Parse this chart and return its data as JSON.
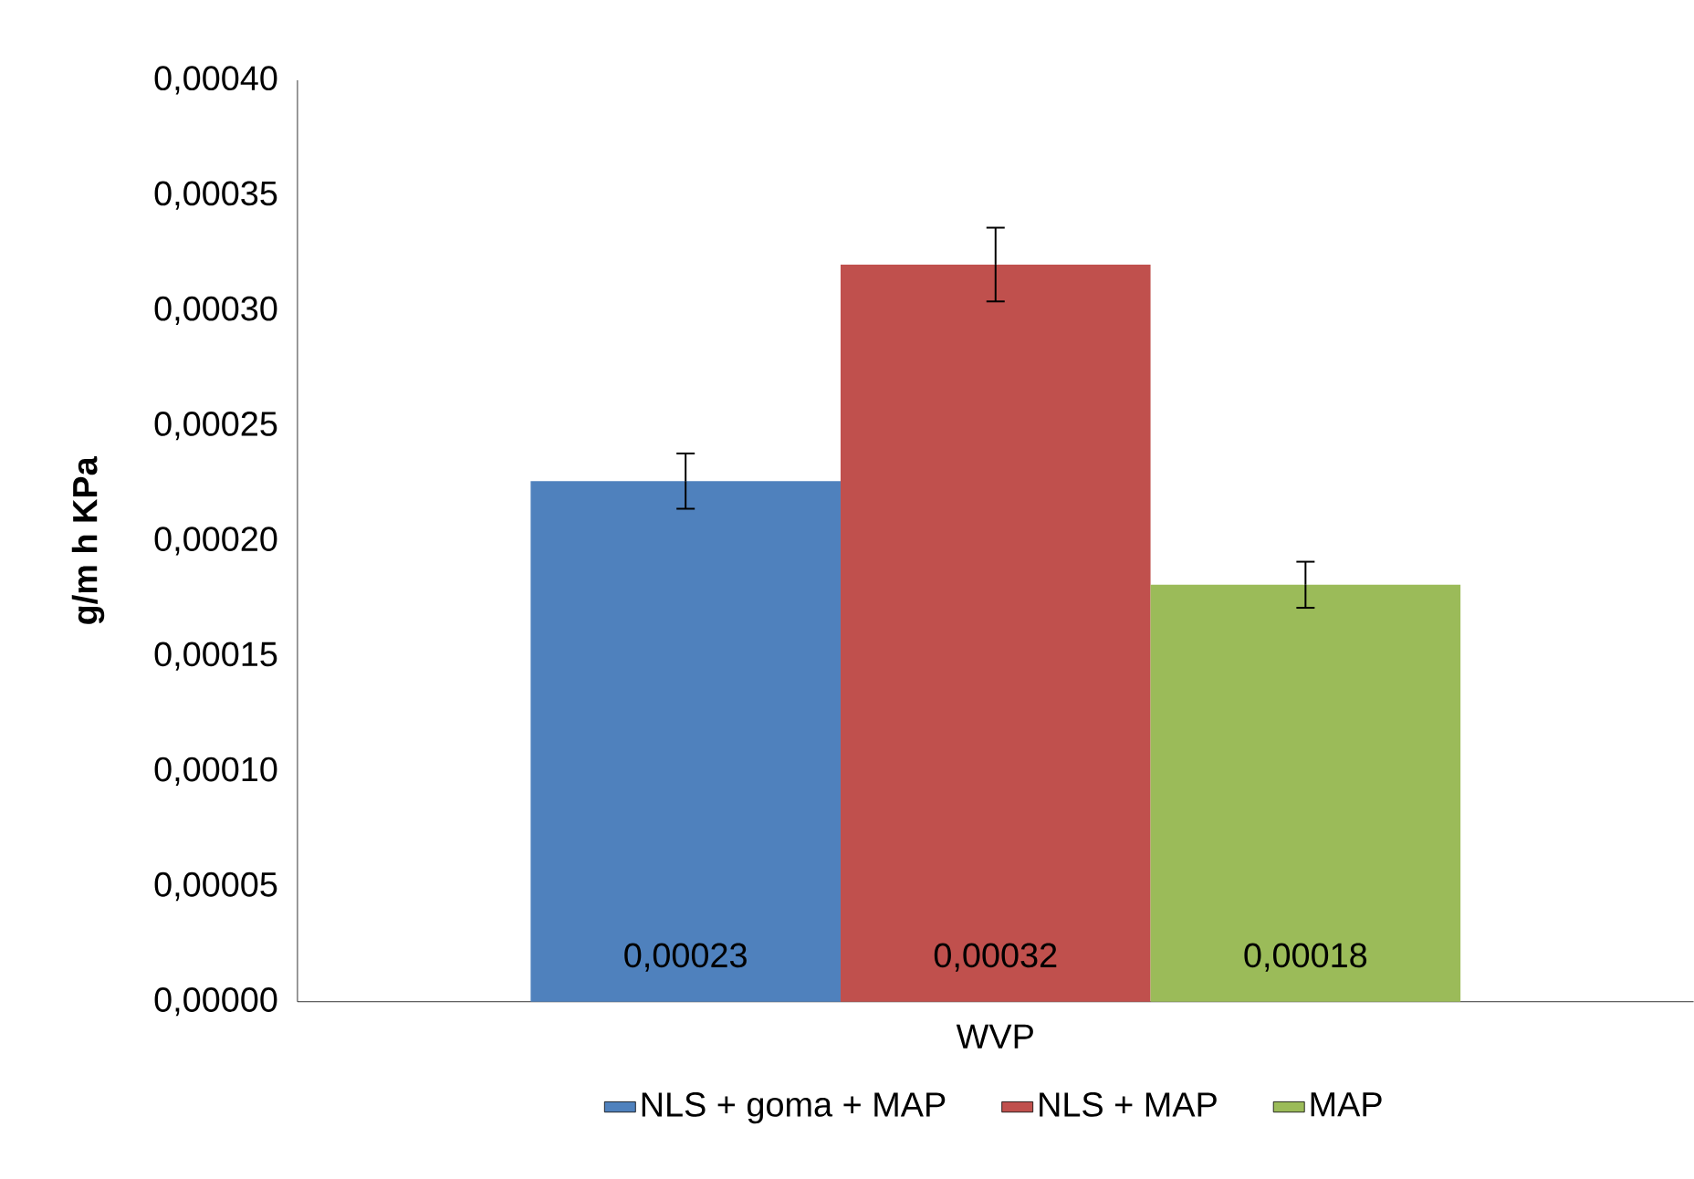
{
  "chart_data": {
    "type": "bar",
    "ylabel": "g/m h KPa",
    "categories": [
      "WVP"
    ],
    "series": [
      {
        "name": "NLS + goma + MAP",
        "color": "#4f81bd",
        "values": [
          0.000226
        ],
        "errors": [
          1.2e-05
        ],
        "value_labels": [
          "0,00023"
        ]
      },
      {
        "name": "NLS + MAP",
        "color": "#c0504d",
        "values": [
          0.00032
        ],
        "errors": [
          1.6e-05
        ],
        "value_labels": [
          "0,00032"
        ]
      },
      {
        "name": "MAP",
        "color": "#9bbb59",
        "values": [
          0.000181
        ],
        "errors": [
          1e-05
        ],
        "value_labels": [
          "0,00018"
        ]
      }
    ],
    "ylim": [
      0,
      0.0004
    ],
    "yticks": [
      {
        "value": 0,
        "label": "0,00000"
      },
      {
        "value": 5e-05,
        "label": "0,00005"
      },
      {
        "value": 0.0001,
        "label": "0,00010"
      },
      {
        "value": 0.00015,
        "label": "0,00015"
      },
      {
        "value": 0.0002,
        "label": "0,00020"
      },
      {
        "value": 0.00025,
        "label": "0,00025"
      },
      {
        "value": 0.0003,
        "label": "0,00030"
      },
      {
        "value": 0.00035,
        "label": "0,00035"
      },
      {
        "value": 0.0004,
        "label": "0,00040"
      }
    ],
    "grid": false,
    "legend": "bottom"
  }
}
